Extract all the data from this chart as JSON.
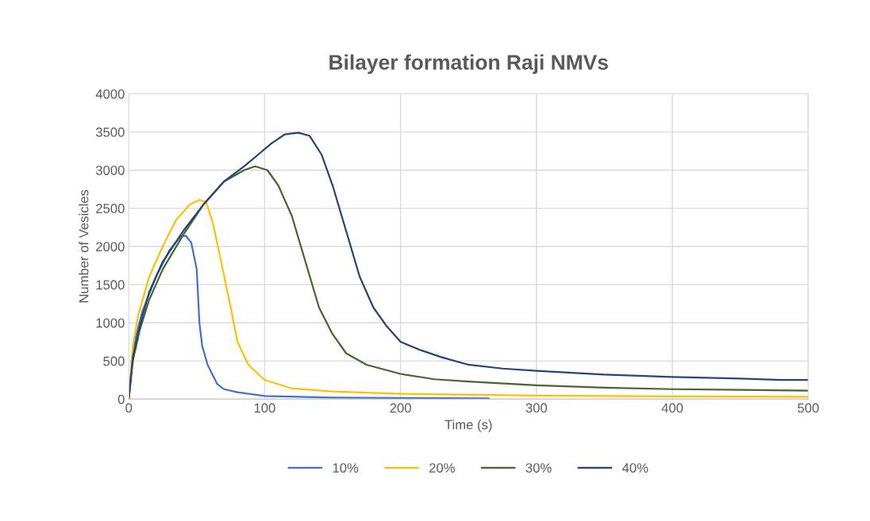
{
  "chart_data": {
    "type": "line",
    "title": "Bilayer formation Raji NMVs",
    "xlabel": "Time (s)",
    "ylabel": "Number of Vesicles",
    "xlim": [
      0,
      500
    ],
    "xticks": [
      0,
      100,
      200,
      300,
      400,
      500
    ],
    "ylim": [
      0,
      4000
    ],
    "yticks": [
      0,
      500,
      1000,
      1500,
      2000,
      2500,
      3000,
      3500,
      4000
    ],
    "grid": true,
    "legend": "bottom",
    "marker": "none",
    "line_style": "solid",
    "series": [
      {
        "name": "10%",
        "color": "#4472c4",
        "x": [
          0,
          2,
          5,
          10,
          20,
          30,
          38,
          42,
          46,
          50,
          52,
          54,
          58,
          65,
          70,
          80,
          100,
          150,
          200,
          265
        ],
        "values": [
          0,
          400,
          800,
          1150,
          1600,
          1950,
          2130,
          2140,
          2050,
          1700,
          1000,
          700,
          450,
          200,
          130,
          90,
          40,
          20,
          15,
          10
        ]
      },
      {
        "name": "20%",
        "color": "#ffc000",
        "x": [
          0,
          3,
          7,
          15,
          25,
          35,
          45,
          52,
          57,
          62,
          68,
          75,
          80,
          88,
          100,
          120,
          150,
          200,
          300,
          400,
          500
        ],
        "values": [
          0,
          700,
          1100,
          1600,
          2000,
          2350,
          2550,
          2610,
          2580,
          2300,
          1800,
          1200,
          750,
          450,
          250,
          140,
          100,
          70,
          45,
          35,
          30
        ]
      },
      {
        "name": "30%",
        "color": "#43682b",
        "x": [
          0,
          3,
          8,
          15,
          25,
          40,
          55,
          70,
          85,
          93,
          102,
          110,
          120,
          130,
          140,
          150,
          160,
          175,
          200,
          225,
          250,
          300,
          350,
          400,
          450,
          500
        ],
        "values": [
          0,
          500,
          900,
          1300,
          1700,
          2150,
          2550,
          2850,
          3000,
          3050,
          3000,
          2800,
          2400,
          1800,
          1200,
          850,
          600,
          450,
          330,
          260,
          230,
          180,
          150,
          130,
          120,
          110
        ]
      },
      {
        "name": "40%",
        "color": "#264478",
        "x": [
          0,
          3,
          8,
          15,
          25,
          40,
          55,
          70,
          85,
          95,
          105,
          115,
          125,
          133,
          142,
          150,
          160,
          170,
          180,
          190,
          200,
          215,
          230,
          250,
          275,
          300,
          350,
          400,
          450,
          480,
          500
        ],
        "values": [
          0,
          550,
          950,
          1400,
          1800,
          2200,
          2550,
          2850,
          3050,
          3200,
          3350,
          3470,
          3490,
          3450,
          3200,
          2800,
          2200,
          1600,
          1200,
          950,
          750,
          640,
          550,
          450,
          400,
          370,
          320,
          290,
          270,
          250,
          250
        ]
      }
    ]
  }
}
